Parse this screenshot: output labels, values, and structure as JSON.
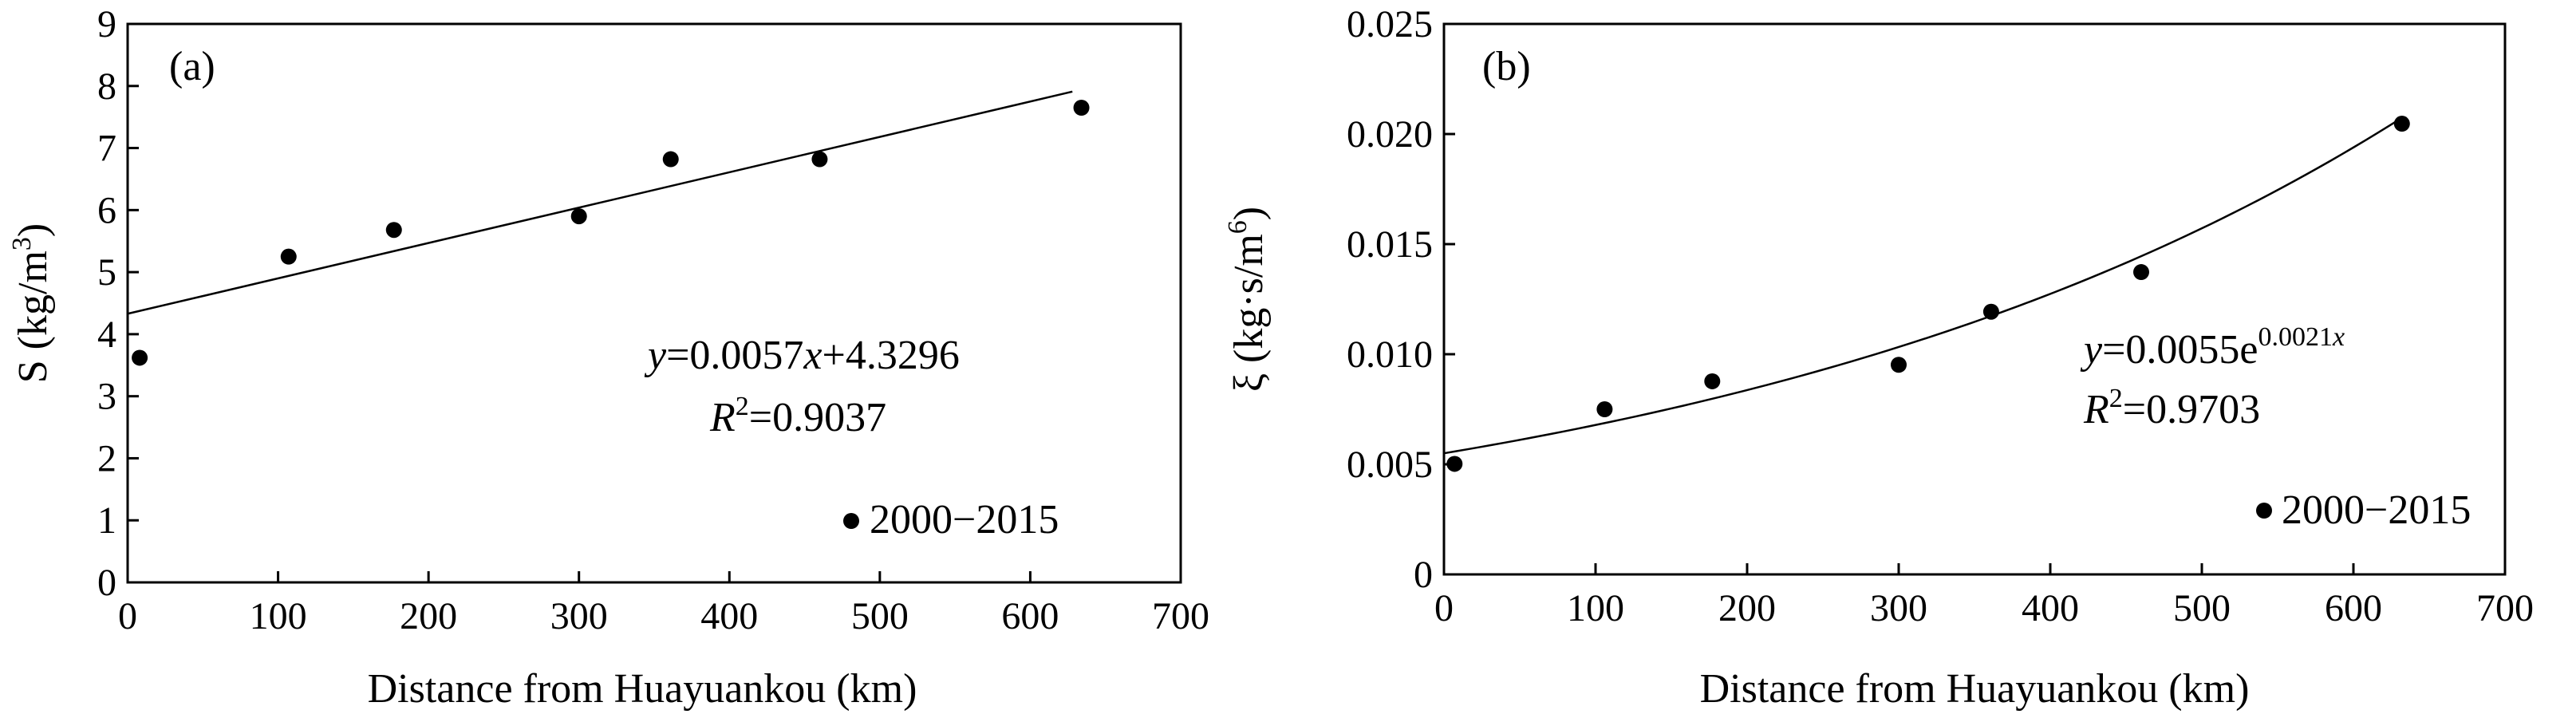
{
  "chart_data": [
    {
      "type": "scatter",
      "panel_label": "(a)",
      "xlabel": "Distance from Huayuankou (km)",
      "ylabel": "S (kg/m³)",
      "ylabel_parts": {
        "pre": "S (kg/m",
        "sup": "3",
        "post": ")"
      },
      "xlim": [
        0,
        700
      ],
      "ylim": [
        0,
        9
      ],
      "xticks": [
        "0",
        "100",
        "200",
        "300",
        "400",
        "500",
        "600",
        "700"
      ],
      "yticks": [
        "0",
        "1",
        "2",
        "3",
        "4",
        "5",
        "6",
        "7",
        "8",
        "9"
      ],
      "series": [
        {
          "name": "2000−2015",
          "points": [
            {
              "x": 8,
              "y": 3.62
            },
            {
              "x": 107,
              "y": 5.25
            },
            {
              "x": 177,
              "y": 5.68
            },
            {
              "x": 300,
              "y": 5.9
            },
            {
              "x": 361,
              "y": 6.82
            },
            {
              "x": 460,
              "y": 6.82
            },
            {
              "x": 634,
              "y": 7.65
            }
          ]
        }
      ],
      "fit": {
        "kind": "linear",
        "slope": 0.0057,
        "intercept": 4.3296,
        "x_range": [
          0,
          628
        ]
      },
      "equation": {
        "line1": {
          "y": "y",
          "rest_pre": "=0.0057",
          "x": "x",
          "rest_post": "+4.3296"
        },
        "line2": {
          "r": "R",
          "sup": "2",
          "value": "=0.9037"
        }
      },
      "legend": {
        "label": "2000−2015",
        "position": "bottom-right"
      },
      "grid": false
    },
    {
      "type": "scatter",
      "panel_label": "(b)",
      "xlabel": "Distance from Huayuankou (km)",
      "ylabel": "ξ (kg·s/m⁶)",
      "ylabel_parts": {
        "pre": "ξ (kg·s/m",
        "sup": "6",
        "post": ")"
      },
      "xlim": [
        0,
        700
      ],
      "ylim": [
        0,
        0.025
      ],
      "xticks": [
        "0",
        "100",
        "200",
        "300",
        "400",
        "500",
        "600",
        "700"
      ],
      "yticks": [
        "0",
        "0.005",
        "0.010",
        "0.015",
        "0.020",
        "0.025"
      ],
      "series": [
        {
          "name": "2000−2015",
          "points": [
            {
              "x": 7,
              "y": 0.00502
            },
            {
              "x": 106,
              "y": 0.0075
            },
            {
              "x": 177,
              "y": 0.00877
            },
            {
              "x": 300,
              "y": 0.00952
            },
            {
              "x": 361,
              "y": 0.01193
            },
            {
              "x": 460,
              "y": 0.01373
            },
            {
              "x": 632,
              "y": 0.02047
            }
          ]
        }
      ],
      "fit": {
        "kind": "exponential",
        "a": 0.0055,
        "b": 0.0021,
        "x_range": [
          0,
          632
        ]
      },
      "equation": {
        "line1": {
          "y": "y",
          "rest_pre": "=0.0055e",
          "sup": "0.0021",
          "x": "x"
        },
        "line2": {
          "r": "R",
          "sup": "2",
          "value": "=0.9703"
        }
      },
      "legend": {
        "label": "2000−2015",
        "position": "bottom-right"
      },
      "grid": false
    }
  ]
}
